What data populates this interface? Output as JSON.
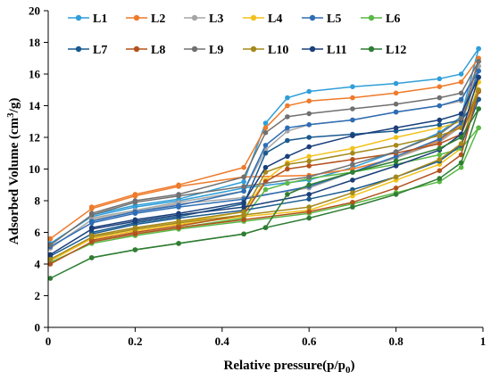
{
  "chart_data": {
    "type": "line",
    "title": "",
    "xlabel_main": "Relative pressure(p/p",
    "xlabel_sub": "0",
    "xlabel_close": ")",
    "ylabel_main": "Adsorbed Volume (cm",
    "ylabel_sup": "3",
    "ylabel_close": "/g)",
    "xlim": [
      0,
      1
    ],
    "ylim": [
      0,
      20
    ],
    "xticks": [
      "0",
      "0.2",
      "0.4",
      "0.6",
      "0.8",
      "1"
    ],
    "yticks": [
      "0",
      "2",
      "4",
      "6",
      "8",
      "10",
      "12",
      "14",
      "16",
      "18",
      "20"
    ],
    "grid": false,
    "legend_position": "top-left",
    "series": [
      {
        "name": "L1",
        "color": "#2f9ed8",
        "adsorption": [
          [
            0.005,
            5.3
          ],
          [
            0.1,
            7.0
          ],
          [
            0.2,
            7.6
          ],
          [
            0.3,
            8.0
          ],
          [
            0.45,
            8.8
          ],
          [
            0.6,
            9.3
          ],
          [
            0.7,
            10.1
          ],
          [
            0.8,
            11.1
          ],
          [
            0.9,
            12.3
          ],
          [
            0.95,
            13.3
          ],
          [
            0.99,
            17.6
          ]
        ],
        "desorption": [
          [
            0.99,
            17.6
          ],
          [
            0.95,
            16.0
          ],
          [
            0.9,
            15.7
          ],
          [
            0.8,
            15.4
          ],
          [
            0.7,
            15.2
          ],
          [
            0.6,
            14.9
          ],
          [
            0.55,
            14.5
          ],
          [
            0.5,
            12.9
          ],
          [
            0.45,
            9.2
          ],
          [
            0.3,
            8.1
          ],
          [
            0.2,
            7.7
          ],
          [
            0.1,
            7.1
          ]
        ]
      },
      {
        "name": "L2",
        "color": "#ee7a2a",
        "adsorption": [
          [
            0.005,
            5.6
          ],
          [
            0.1,
            7.5
          ],
          [
            0.2,
            8.3
          ],
          [
            0.3,
            8.9
          ],
          [
            0.45,
            9.5
          ],
          [
            0.6,
            9.6
          ],
          [
            0.7,
            10.0
          ],
          [
            0.8,
            10.7
          ],
          [
            0.9,
            11.8
          ],
          [
            0.95,
            12.8
          ],
          [
            0.99,
            17.0
          ]
        ],
        "desorption": [
          [
            0.99,
            17.0
          ],
          [
            0.95,
            15.5
          ],
          [
            0.9,
            15.2
          ],
          [
            0.8,
            14.8
          ],
          [
            0.7,
            14.5
          ],
          [
            0.6,
            14.3
          ],
          [
            0.55,
            14.0
          ],
          [
            0.5,
            12.6
          ],
          [
            0.45,
            10.1
          ],
          [
            0.3,
            9.0
          ],
          [
            0.2,
            8.4
          ],
          [
            0.1,
            7.6
          ]
        ]
      },
      {
        "name": "L3",
        "color": "#a6a6a6",
        "adsorption": [
          [
            0.005,
            5.0
          ],
          [
            0.1,
            6.8
          ],
          [
            0.2,
            7.3
          ],
          [
            0.3,
            7.8
          ],
          [
            0.45,
            8.2
          ],
          [
            0.6,
            8.8
          ],
          [
            0.7,
            9.8
          ],
          [
            0.8,
            10.7
          ],
          [
            0.9,
            11.7
          ],
          [
            0.95,
            12.7
          ],
          [
            0.99,
            16.5
          ]
        ],
        "desorption": [
          [
            0.99,
            16.5
          ],
          [
            0.95,
            14.3
          ],
          [
            0.9,
            14.0
          ],
          [
            0.8,
            13.6
          ],
          [
            0.7,
            13.1
          ],
          [
            0.6,
            12.8
          ],
          [
            0.55,
            12.4
          ],
          [
            0.5,
            11.2
          ],
          [
            0.45,
            8.6
          ],
          [
            0.3,
            7.9
          ],
          [
            0.2,
            7.4
          ],
          [
            0.1,
            6.9
          ]
        ]
      },
      {
        "name": "L4",
        "color": "#f2c11c",
        "adsorption": [
          [
            0.005,
            4.2
          ],
          [
            0.1,
            5.6
          ],
          [
            0.2,
            6.1
          ],
          [
            0.3,
            6.5
          ],
          [
            0.45,
            7.0
          ],
          [
            0.6,
            7.4
          ],
          [
            0.7,
            8.3
          ],
          [
            0.8,
            9.3
          ],
          [
            0.9,
            10.3
          ],
          [
            0.95,
            11.3
          ],
          [
            0.99,
            15.5
          ]
        ],
        "desorption": [
          [
            0.99,
            15.5
          ],
          [
            0.95,
            13.0
          ],
          [
            0.9,
            12.6
          ],
          [
            0.8,
            12.0
          ],
          [
            0.7,
            11.3
          ],
          [
            0.6,
            10.8
          ],
          [
            0.55,
            10.4
          ],
          [
            0.5,
            9.3
          ],
          [
            0.45,
            7.3
          ],
          [
            0.3,
            6.6
          ],
          [
            0.2,
            6.2
          ],
          [
            0.1,
            5.7
          ]
        ]
      },
      {
        "name": "L5",
        "color": "#2e6db4",
        "adsorption": [
          [
            0.005,
            5.1
          ],
          [
            0.1,
            6.6
          ],
          [
            0.2,
            7.2
          ],
          [
            0.3,
            7.6
          ],
          [
            0.45,
            8.1
          ],
          [
            0.6,
            8.9
          ],
          [
            0.7,
            9.8
          ],
          [
            0.8,
            10.8
          ],
          [
            0.9,
            11.9
          ],
          [
            0.95,
            12.9
          ],
          [
            0.99,
            16.2
          ]
        ],
        "desorption": [
          [
            0.99,
            16.2
          ],
          [
            0.95,
            14.4
          ],
          [
            0.9,
            14.0
          ],
          [
            0.8,
            13.6
          ],
          [
            0.7,
            13.1
          ],
          [
            0.6,
            12.8
          ],
          [
            0.55,
            12.6
          ],
          [
            0.5,
            11.5
          ],
          [
            0.45,
            8.6
          ],
          [
            0.3,
            7.7
          ],
          [
            0.2,
            7.3
          ],
          [
            0.1,
            6.7
          ]
        ]
      },
      {
        "name": "L6",
        "color": "#5ab947",
        "adsorption": [
          [
            0.005,
            4.1
          ],
          [
            0.1,
            5.3
          ],
          [
            0.2,
            5.8
          ],
          [
            0.3,
            6.2
          ],
          [
            0.45,
            6.7
          ],
          [
            0.6,
            7.2
          ],
          [
            0.7,
            7.8
          ],
          [
            0.8,
            8.5
          ],
          [
            0.9,
            9.2
          ],
          [
            0.95,
            10.1
          ],
          [
            0.99,
            12.6
          ]
        ],
        "desorption": [
          [
            0.99,
            12.6
          ],
          [
            0.95,
            11.3
          ],
          [
            0.9,
            10.9
          ],
          [
            0.8,
            10.3
          ],
          [
            0.7,
            9.8
          ],
          [
            0.6,
            9.4
          ],
          [
            0.55,
            9.1
          ],
          [
            0.5,
            8.7
          ],
          [
            0.45,
            6.9
          ],
          [
            0.3,
            6.3
          ],
          [
            0.2,
            5.9
          ],
          [
            0.1,
            5.4
          ]
        ]
      },
      {
        "name": "L7",
        "color": "#1a5a8e",
        "adsorption": [
          [
            0.005,
            4.5
          ],
          [
            0.1,
            5.9
          ],
          [
            0.2,
            6.5
          ],
          [
            0.3,
            6.9
          ],
          [
            0.45,
            7.4
          ],
          [
            0.6,
            8.1
          ],
          [
            0.7,
            8.7
          ],
          [
            0.8,
            9.5
          ],
          [
            0.9,
            10.5
          ],
          [
            0.95,
            11.5
          ],
          [
            0.99,
            14.4
          ]
        ],
        "desorption": [
          [
            0.99,
            14.4
          ],
          [
            0.95,
            13.1
          ],
          [
            0.9,
            12.8
          ],
          [
            0.8,
            12.4
          ],
          [
            0.7,
            12.2
          ],
          [
            0.6,
            12.0
          ],
          [
            0.55,
            11.8
          ],
          [
            0.5,
            11.0
          ],
          [
            0.45,
            7.8
          ],
          [
            0.3,
            7.0
          ],
          [
            0.2,
            6.6
          ],
          [
            0.1,
            6.0
          ]
        ]
      },
      {
        "name": "L8",
        "color": "#b3521c",
        "adsorption": [
          [
            0.005,
            4.0
          ],
          [
            0.1,
            5.4
          ],
          [
            0.2,
            5.9
          ],
          [
            0.3,
            6.3
          ],
          [
            0.45,
            6.8
          ],
          [
            0.6,
            7.3
          ],
          [
            0.7,
            7.9
          ],
          [
            0.8,
            8.8
          ],
          [
            0.9,
            9.9
          ],
          [
            0.95,
            10.9
          ],
          [
            0.99,
            14.9
          ]
        ],
        "desorption": [
          [
            0.99,
            14.9
          ],
          [
            0.95,
            12.2
          ],
          [
            0.9,
            11.6
          ],
          [
            0.8,
            11.0
          ],
          [
            0.7,
            10.6
          ],
          [
            0.6,
            10.2
          ],
          [
            0.55,
            10.0
          ],
          [
            0.5,
            9.2
          ],
          [
            0.45,
            7.1
          ],
          [
            0.3,
            6.4
          ],
          [
            0.2,
            6.0
          ],
          [
            0.1,
            5.5
          ]
        ]
      },
      {
        "name": "L9",
        "color": "#707070",
        "adsorption": [
          [
            0.005,
            5.2
          ],
          [
            0.1,
            7.1
          ],
          [
            0.2,
            7.9
          ],
          [
            0.3,
            8.3
          ],
          [
            0.45,
            8.9
          ],
          [
            0.6,
            9.5
          ],
          [
            0.7,
            10.3
          ],
          [
            0.8,
            11.1
          ],
          [
            0.9,
            12.2
          ],
          [
            0.95,
            13.2
          ],
          [
            0.99,
            16.8
          ]
        ],
        "desorption": [
          [
            0.99,
            16.8
          ],
          [
            0.95,
            14.8
          ],
          [
            0.9,
            14.5
          ],
          [
            0.8,
            14.1
          ],
          [
            0.7,
            13.8
          ],
          [
            0.6,
            13.5
          ],
          [
            0.55,
            13.3
          ],
          [
            0.5,
            12.3
          ],
          [
            0.45,
            9.5
          ],
          [
            0.3,
            8.4
          ],
          [
            0.2,
            8.0
          ],
          [
            0.1,
            7.2
          ]
        ]
      },
      {
        "name": "L10",
        "color": "#a5891a",
        "adsorption": [
          [
            0.005,
            4.3
          ],
          [
            0.1,
            5.7
          ],
          [
            0.2,
            6.2
          ],
          [
            0.3,
            6.6
          ],
          [
            0.45,
            7.1
          ],
          [
            0.6,
            7.6
          ],
          [
            0.7,
            8.5
          ],
          [
            0.8,
            9.5
          ],
          [
            0.9,
            10.6
          ],
          [
            0.95,
            11.6
          ],
          [
            0.99,
            15.0
          ]
        ],
        "desorption": [
          [
            0.99,
            15.0
          ],
          [
            0.95,
            12.6
          ],
          [
            0.9,
            12.1
          ],
          [
            0.8,
            11.5
          ],
          [
            0.7,
            11.0
          ],
          [
            0.6,
            10.5
          ],
          [
            0.55,
            10.3
          ],
          [
            0.5,
            9.8
          ],
          [
            0.45,
            7.3
          ],
          [
            0.3,
            6.7
          ],
          [
            0.2,
            6.3
          ],
          [
            0.1,
            5.8
          ]
        ]
      },
      {
        "name": "L11",
        "color": "#1a3f7a",
        "adsorption": [
          [
            0.005,
            4.6
          ],
          [
            0.1,
            6.2
          ],
          [
            0.2,
            6.7
          ],
          [
            0.3,
            7.1
          ],
          [
            0.45,
            7.6
          ],
          [
            0.6,
            8.4
          ],
          [
            0.7,
            9.3
          ],
          [
            0.8,
            10.2
          ],
          [
            0.9,
            11.2
          ],
          [
            0.95,
            12.2
          ],
          [
            0.99,
            15.8
          ]
        ],
        "desorption": [
          [
            0.99,
            15.8
          ],
          [
            0.95,
            13.5
          ],
          [
            0.9,
            13.1
          ],
          [
            0.8,
            12.6
          ],
          [
            0.7,
            12.1
          ],
          [
            0.6,
            11.4
          ],
          [
            0.55,
            10.8
          ],
          [
            0.5,
            10.1
          ],
          [
            0.45,
            7.9
          ],
          [
            0.3,
            7.2
          ],
          [
            0.2,
            6.8
          ],
          [
            0.1,
            6.3
          ]
        ]
      },
      {
        "name": "L12",
        "color": "#2f7d32",
        "adsorption": [
          [
            0.005,
            3.1
          ],
          [
            0.1,
            4.4
          ],
          [
            0.2,
            4.9
          ],
          [
            0.3,
            5.3
          ],
          [
            0.45,
            5.9
          ],
          [
            0.5,
            6.3
          ],
          [
            0.6,
            6.9
          ],
          [
            0.7,
            7.6
          ],
          [
            0.8,
            8.4
          ],
          [
            0.9,
            9.4
          ],
          [
            0.95,
            10.4
          ],
          [
            0.99,
            13.8
          ]
        ],
        "desorption": [
          [
            0.99,
            13.8
          ],
          [
            0.95,
            12.0
          ],
          [
            0.9,
            11.3
          ],
          [
            0.8,
            10.5
          ],
          [
            0.7,
            9.8
          ],
          [
            0.6,
            9.0
          ],
          [
            0.55,
            8.4
          ],
          [
            0.5,
            6.3
          ],
          [
            0.45,
            5.9
          ],
          [
            0.3,
            5.3
          ],
          [
            0.2,
            4.9
          ],
          [
            0.1,
            4.4
          ]
        ]
      }
    ]
  }
}
